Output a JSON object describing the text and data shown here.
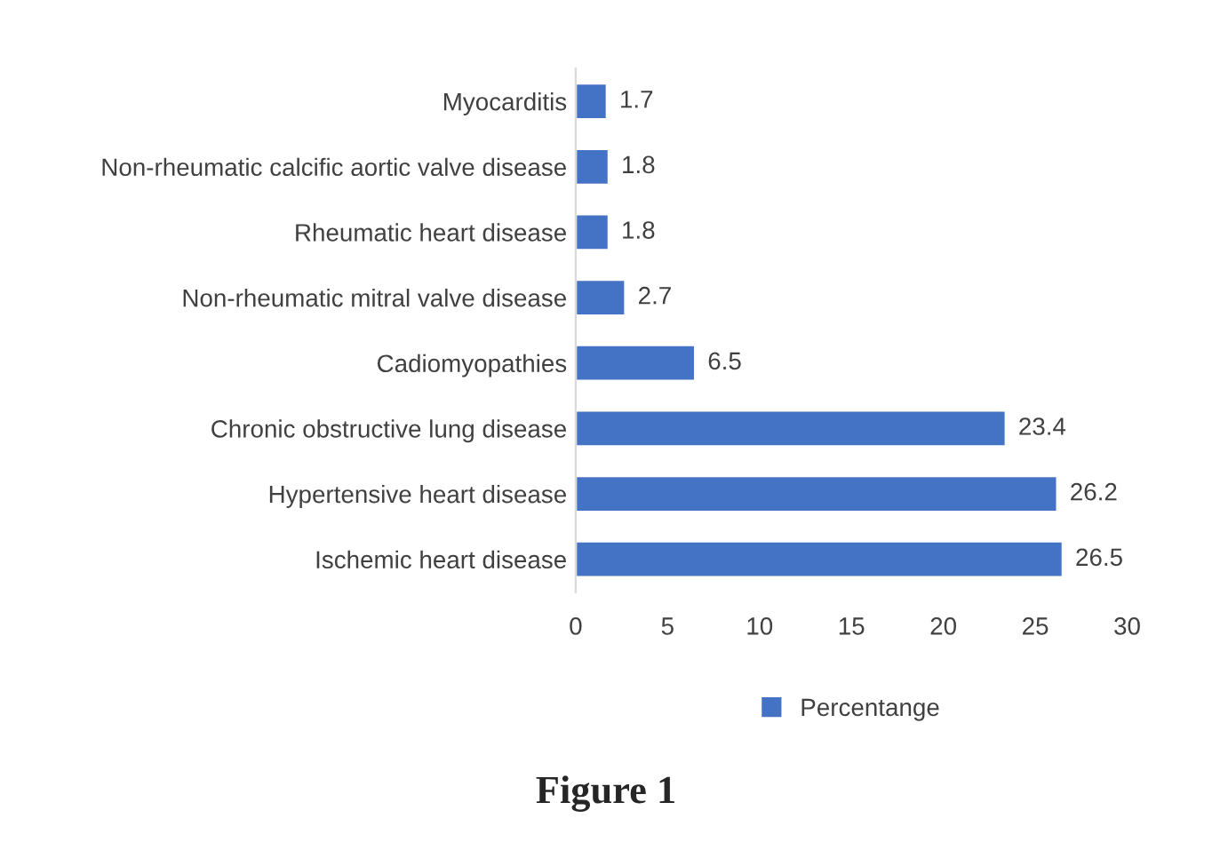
{
  "chart_data": {
    "type": "bar",
    "orientation": "horizontal",
    "title": "Figure 1",
    "categories": [
      "Myocarditis",
      "Non-rheumatic calcific aortic valve disease",
      "Rheumatic heart disease",
      "Non-rheumatic mitral valve disease",
      "Cadiomyopathies",
      "Chronic obstructive lung disease",
      "Hypertensive heart disease",
      "Ischemic heart disease"
    ],
    "series": [
      {
        "name": "Percentange",
        "color": "#4472c4",
        "values": [
          1.7,
          1.8,
          1.8,
          2.7,
          6.5,
          23.4,
          26.2,
          26.5
        ]
      }
    ],
    "xlim": [
      0,
      30
    ],
    "xticks": [
      0,
      5,
      10,
      15,
      20,
      25,
      30
    ],
    "data_labels": true,
    "legend": "bottom",
    "grid": false
  }
}
